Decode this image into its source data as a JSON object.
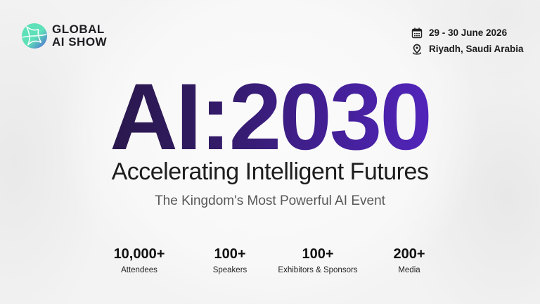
{
  "brand": {
    "line1": "GLOBAL",
    "line2": "AI SHOW",
    "logo_colors": [
      "#5ee0b8",
      "#4c5fd8"
    ]
  },
  "event": {
    "date": "29 - 30 June 2026",
    "location": "Riyadh, Saudi Arabia",
    "date_icon": "calendar-icon",
    "location_icon": "map-pin-icon"
  },
  "headline": "AI:2030",
  "headline_gradient": [
    "#231636",
    "#6128e0"
  ],
  "subtitle": "Accelerating Intelligent Futures",
  "tagline": "The Kingdom's Most Powerful AI Event",
  "stats": [
    {
      "value": "10,000+",
      "label": "Attendees"
    },
    {
      "value": "100+",
      "label": "Speakers"
    },
    {
      "value": "100+",
      "label": "Exhibitors & Sponsors"
    },
    {
      "value": "200+",
      "label": "Media"
    }
  ]
}
